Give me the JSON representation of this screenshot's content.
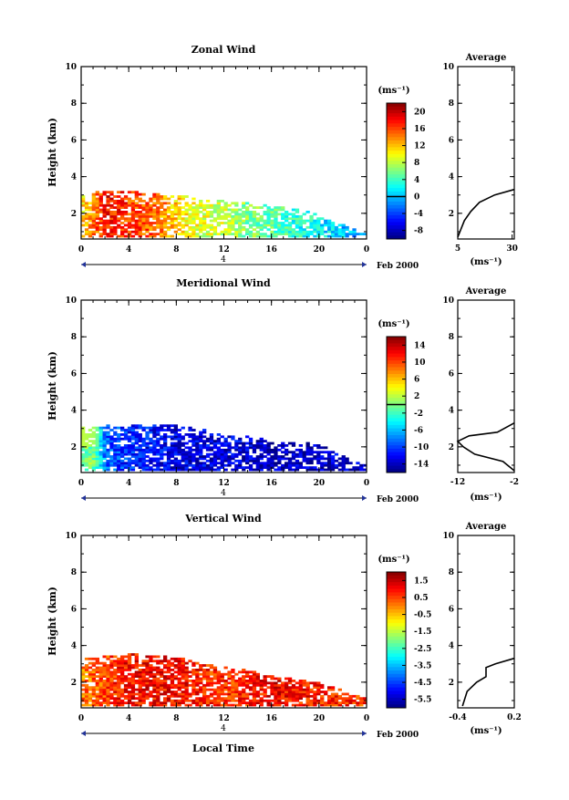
{
  "panels": [
    {
      "title": "Zonal Wind",
      "cbar_unit": "(ms⁻¹)",
      "cbar_ticks": [
        "20",
        "16",
        "12",
        "8",
        "4",
        "0",
        "-4",
        "-8"
      ],
      "cbar_reference_line": "0",
      "x_ticks": [
        "0",
        "4",
        "8",
        "12",
        "16",
        "20",
        "0"
      ],
      "date_marker": "4",
      "date_label": "Feb 2000",
      "avg_title": "Average",
      "avg_y_ticks": [
        "10",
        "8",
        "6",
        "4",
        "2"
      ],
      "avg_x_ticks": [
        "5",
        "30"
      ],
      "avg_unit": "(ms⁻¹)"
    },
    {
      "title": "Meridional Wind",
      "cbar_unit": "(ms⁻¹)",
      "cbar_ticks": [
        "14",
        "10",
        "6",
        "2",
        "-2",
        "-6",
        "-10",
        "-14"
      ],
      "cbar_reference_line": "0",
      "x_ticks": [
        "0",
        "4",
        "8",
        "12",
        "16",
        "20",
        "0"
      ],
      "date_marker": "4",
      "date_label": "Feb 2000",
      "avg_title": "Average",
      "avg_y_ticks": [
        "10",
        "8",
        "6",
        "4",
        "2"
      ],
      "avg_x_ticks": [
        "-12",
        "-2"
      ],
      "avg_unit": "(ms⁻¹)"
    },
    {
      "title": "Vertical Wind",
      "cbar_unit": "(ms⁻¹)",
      "cbar_ticks": [
        "1.5",
        "0.5",
        "-0.5",
        "-1.5",
        "-2.5",
        "-3.5",
        "-4.5",
        "-5.5"
      ],
      "x_ticks": [
        "0",
        "4",
        "8",
        "12",
        "16",
        "20",
        "0"
      ],
      "date_marker": "4",
      "date_label": "Feb 2000",
      "xlabel": "Local Time",
      "avg_title": "Average",
      "avg_y_ticks": [
        "10",
        "8",
        "6",
        "4",
        "2"
      ],
      "avg_x_ticks": [
        "-0.4",
        "0.2"
      ],
      "avg_unit": "(ms⁻¹)"
    }
  ],
  "ylabel": "Height (km)",
  "y_ticks": [
    "10",
    "8",
    "6",
    "4",
    "2"
  ],
  "chart_data": [
    {
      "type": "heatmap",
      "title": "Zonal Wind",
      "xlabel": "",
      "ylabel": "Height (km)",
      "x_range_hours": [
        0,
        24
      ],
      "ylim": [
        0.6,
        10
      ],
      "clim": [
        -10,
        22
      ],
      "surface_profile": [
        [
          0,
          3.0
        ],
        [
          2,
          3.2
        ],
        [
          4,
          3.2
        ],
        [
          6,
          3.0
        ],
        [
          8,
          2.9
        ],
        [
          10,
          2.8
        ],
        [
          12,
          2.6
        ],
        [
          14,
          2.5
        ],
        [
          16,
          2.4
        ],
        [
          18,
          2.2
        ],
        [
          20,
          1.9
        ],
        [
          22,
          1.3
        ],
        [
          24,
          0.8
        ]
      ],
      "value_by_hour": [
        [
          0,
          11
        ],
        [
          2,
          18
        ],
        [
          4,
          16
        ],
        [
          6,
          15
        ],
        [
          8,
          11
        ],
        [
          10,
          9
        ],
        [
          12,
          8
        ],
        [
          14,
          6
        ],
        [
          16,
          5
        ],
        [
          18,
          3
        ],
        [
          20,
          2
        ],
        [
          22,
          0
        ],
        [
          24,
          -2
        ]
      ],
      "average_profile": {
        "x": [
          5,
          6,
          8,
          11,
          15,
          22,
          31
        ],
        "y": [
          0.7,
          1.0,
          1.6,
          2.1,
          2.6,
          3.0,
          3.3
        ],
        "xlim": [
          5,
          31
        ]
      }
    },
    {
      "type": "heatmap",
      "title": "Meridional Wind",
      "xlabel": "",
      "ylabel": "Height (km)",
      "x_range_hours": [
        0,
        24
      ],
      "ylim": [
        0.6,
        10
      ],
      "clim": [
        -16,
        16
      ],
      "surface_profile": [
        [
          0,
          3.0
        ],
        [
          2,
          3.1
        ],
        [
          4,
          3.2
        ],
        [
          6,
          3.2
        ],
        [
          8,
          3.1
        ],
        [
          10,
          2.9
        ],
        [
          12,
          2.6
        ],
        [
          14,
          2.5
        ],
        [
          16,
          2.3
        ],
        [
          18,
          2.2
        ],
        [
          20,
          2.1
        ],
        [
          22,
          1.4
        ],
        [
          24,
          0.9
        ]
      ],
      "value_by_hour": [
        [
          0,
          0
        ],
        [
          1,
          -1
        ],
        [
          2,
          -9
        ],
        [
          4,
          -11
        ],
        [
          6,
          -12
        ],
        [
          8,
          -13
        ],
        [
          10,
          -13
        ],
        [
          12,
          -13
        ],
        [
          16,
          -14
        ],
        [
          20,
          -14
        ],
        [
          24,
          -13
        ]
      ],
      "average_profile": {
        "x": [
          -2,
          -4,
          -9,
          -11,
          -12,
          -10,
          -5,
          -2
        ],
        "y": [
          0.7,
          1.2,
          1.6,
          2.0,
          2.3,
          2.6,
          2.8,
          3.3
        ],
        "xlim": [
          -12,
          -2
        ]
      }
    },
    {
      "type": "heatmap",
      "title": "Vertical Wind",
      "xlabel": "Local Time",
      "ylabel": "Height (km)",
      "x_range_hours": [
        0,
        24
      ],
      "ylim": [
        0.6,
        10
      ],
      "clim": [
        -6,
        2
      ],
      "surface_profile": [
        [
          0,
          3.3
        ],
        [
          2,
          3.4
        ],
        [
          4,
          3.5
        ],
        [
          6,
          3.4
        ],
        [
          8,
          3.3
        ],
        [
          10,
          3.0
        ],
        [
          12,
          2.8
        ],
        [
          14,
          2.6
        ],
        [
          16,
          2.3
        ],
        [
          18,
          2.1
        ],
        [
          20,
          1.9
        ],
        [
          22,
          1.5
        ],
        [
          24,
          1.0
        ]
      ],
      "value_by_hour": [
        [
          0,
          0.0
        ],
        [
          4,
          1.0
        ],
        [
          8,
          1.0
        ],
        [
          12,
          0.6
        ],
        [
          16,
          1.1
        ],
        [
          20,
          0.8
        ],
        [
          24,
          0.6
        ]
      ],
      "average_profile": {
        "x": [
          -0.35,
          -0.3,
          -0.2,
          -0.1,
          -0.1,
          0.0,
          0.2
        ],
        "y": [
          0.7,
          1.5,
          2.0,
          2.3,
          2.8,
          3.0,
          3.3
        ],
        "xlim": [
          -0.4,
          0.2
        ]
      }
    }
  ]
}
